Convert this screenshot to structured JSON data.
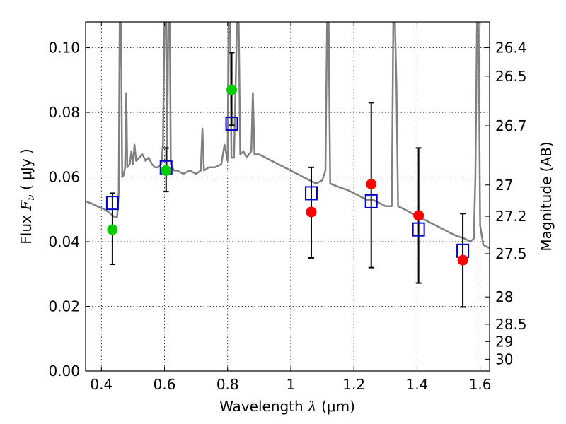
{
  "chart_data": {
    "type": "scatter",
    "title": "",
    "xlabel": {
      "prefix": "Wavelength ",
      "symbol": "λ",
      "units": " (μm)"
    },
    "ylabel": {
      "prefix": "Flux ",
      "symbol": "F",
      "subscript": "ν",
      "units": " ( μJy )"
    },
    "ylabel_right": "Magnitude (AB)",
    "xlim": [
      0.35,
      1.63
    ],
    "ylim": [
      0.0,
      0.108
    ],
    "grid": true,
    "x_ticks": [
      {
        "value": 0.4,
        "label": "0.4"
      },
      {
        "value": 0.6,
        "label": "0.6"
      },
      {
        "value": 0.8,
        "label": "0.8"
      },
      {
        "value": 1.0,
        "label": "1"
      },
      {
        "value": 1.2,
        "label": "1.2"
      },
      {
        "value": 1.4,
        "label": "1.4"
      },
      {
        "value": 1.6,
        "label": "1.6"
      }
    ],
    "y_ticks": [
      {
        "value": 0.0,
        "label": "0.00"
      },
      {
        "value": 0.02,
        "label": "0.02"
      },
      {
        "value": 0.04,
        "label": "0.04"
      },
      {
        "value": 0.06,
        "label": "0.06"
      },
      {
        "value": 0.08,
        "label": "0.08"
      },
      {
        "value": 0.1,
        "label": "0.10"
      }
    ],
    "right_ticks": [
      {
        "value": 26.4,
        "label": "26.4"
      },
      {
        "value": 26.5,
        "label": "26.5"
      },
      {
        "value": 26.7,
        "label": "26.7"
      },
      {
        "value": 27.0,
        "label": "27"
      },
      {
        "value": 27.2,
        "label": "27.2"
      },
      {
        "value": 27.5,
        "label": "27.5"
      },
      {
        "value": 28.0,
        "label": "28"
      },
      {
        "value": 28.5,
        "label": "28.5"
      },
      {
        "value": 29.0,
        "label": "29"
      },
      {
        "value": 30.0,
        "label": "30"
      }
    ],
    "colors": {
      "model": "#808080",
      "detection": "#00cc00",
      "upper": "#ff0000",
      "synthetic": "#0000cc",
      "errorbar": "#000000"
    },
    "model_spectrum": [
      [
        0.35,
        0.0525
      ],
      [
        0.37,
        0.0518
      ],
      [
        0.39,
        0.0508
      ],
      [
        0.41,
        0.05
      ],
      [
        0.425,
        0.049
      ],
      [
        0.44,
        0.0478
      ],
      [
        0.45,
        0.0476
      ],
      [
        0.455,
        0.055
      ],
      [
        0.458,
        0.108
      ],
      [
        0.462,
        0.108
      ],
      [
        0.466,
        0.06
      ],
      [
        0.47,
        0.0605
      ],
      [
        0.475,
        0.063
      ],
      [
        0.479,
        0.086
      ],
      [
        0.482,
        0.063
      ],
      [
        0.49,
        0.064
      ],
      [
        0.495,
        0.068
      ],
      [
        0.5,
        0.064
      ],
      [
        0.505,
        0.07
      ],
      [
        0.51,
        0.065
      ],
      [
        0.52,
        0.066
      ],
      [
        0.53,
        0.067
      ],
      [
        0.54,
        0.065
      ],
      [
        0.55,
        0.066
      ],
      [
        0.56,
        0.064
      ],
      [
        0.57,
        0.063
      ],
      [
        0.58,
        0.063
      ],
      [
        0.59,
        0.064
      ],
      [
        0.595,
        0.07
      ],
      [
        0.6,
        0.108
      ],
      [
        0.605,
        0.108
      ],
      [
        0.608,
        0.064
      ],
      [
        0.612,
        0.108
      ],
      [
        0.617,
        0.108
      ],
      [
        0.62,
        0.064
      ],
      [
        0.63,
        0.062
      ],
      [
        0.64,
        0.062
      ],
      [
        0.66,
        0.061
      ],
      [
        0.68,
        0.062
      ],
      [
        0.7,
        0.061
      ],
      [
        0.715,
        0.062
      ],
      [
        0.72,
        0.075
      ],
      [
        0.725,
        0.062
      ],
      [
        0.74,
        0.063
      ],
      [
        0.76,
        0.063
      ],
      [
        0.78,
        0.064
      ],
      [
        0.79,
        0.07
      ],
      [
        0.8,
        0.065
      ],
      [
        0.803,
        0.108
      ],
      [
        0.808,
        0.108
      ],
      [
        0.812,
        0.066
      ],
      [
        0.82,
        0.066
      ],
      [
        0.83,
        0.108
      ],
      [
        0.835,
        0.108
      ],
      [
        0.84,
        0.067
      ],
      [
        0.85,
        0.068
      ],
      [
        0.86,
        0.066
      ],
      [
        0.875,
        0.068
      ],
      [
        0.88,
        0.086
      ],
      [
        0.885,
        0.067
      ],
      [
        0.9,
        0.067
      ],
      [
        0.92,
        0.066
      ],
      [
        0.94,
        0.065
      ],
      [
        0.96,
        0.064
      ],
      [
        0.98,
        0.063
      ],
      [
        1.0,
        0.062
      ],
      [
        1.02,
        0.061
      ],
      [
        1.04,
        0.06
      ],
      [
        1.06,
        0.059
      ],
      [
        1.08,
        0.058
      ],
      [
        1.1,
        0.059
      ],
      [
        1.11,
        0.062
      ],
      [
        1.115,
        0.108
      ],
      [
        1.12,
        0.108
      ],
      [
        1.125,
        0.058
      ],
      [
        1.15,
        0.057
      ],
      [
        1.18,
        0.056
      ],
      [
        1.2,
        0.055
      ],
      [
        1.22,
        0.054
      ],
      [
        1.24,
        0.053
      ],
      [
        1.26,
        0.053
      ],
      [
        1.28,
        0.052
      ],
      [
        1.3,
        0.051
      ],
      [
        1.32,
        0.051
      ],
      [
        1.325,
        0.108
      ],
      [
        1.33,
        0.108
      ],
      [
        1.335,
        0.088
      ],
      [
        1.34,
        0.051
      ],
      [
        1.36,
        0.05
      ],
      [
        1.38,
        0.049
      ],
      [
        1.4,
        0.048
      ],
      [
        1.42,
        0.047
      ],
      [
        1.44,
        0.046
      ],
      [
        1.46,
        0.045
      ],
      [
        1.48,
        0.044
      ],
      [
        1.5,
        0.043
      ],
      [
        1.52,
        0.042
      ],
      [
        1.55,
        0.041
      ],
      [
        1.57,
        0.04
      ],
      [
        1.58,
        0.041
      ],
      [
        1.585,
        0.06
      ],
      [
        1.59,
        0.108
      ],
      [
        1.595,
        0.108
      ],
      [
        1.6,
        0.045
      ],
      [
        1.61,
        0.039
      ],
      [
        1.63,
        0.038
      ]
    ],
    "detections": [
      {
        "x": 0.435,
        "y": 0.0437,
        "yerr_low": 0.033,
        "yerr_high": 0.055
      },
      {
        "x": 0.605,
        "y": 0.062,
        "yerr_low": 0.0555,
        "yerr_high": 0.069
      },
      {
        "x": 0.813,
        "y": 0.087,
        "yerr_low": 0.076,
        "yerr_high": 0.0985
      }
    ],
    "upper_limits": [
      {
        "x": 1.065,
        "y": 0.0492,
        "yerr_low": 0.035,
        "yerr_high": 0.063
      },
      {
        "x": 1.255,
        "y": 0.0578,
        "yerr_low": 0.032,
        "yerr_high": 0.083
      },
      {
        "x": 1.405,
        "y": 0.0481,
        "yerr_low": 0.0272,
        "yerr_high": 0.069
      },
      {
        "x": 1.545,
        "y": 0.0343,
        "yerr_low": 0.0198,
        "yerr_high": 0.0487
      }
    ],
    "synthetic_photometry": [
      {
        "x": 0.435,
        "y": 0.052
      },
      {
        "x": 0.605,
        "y": 0.063
      },
      {
        "x": 0.813,
        "y": 0.0765
      },
      {
        "x": 1.065,
        "y": 0.055
      },
      {
        "x": 1.255,
        "y": 0.0525
      },
      {
        "x": 1.405,
        "y": 0.0438
      },
      {
        "x": 1.545,
        "y": 0.0372
      }
    ]
  }
}
